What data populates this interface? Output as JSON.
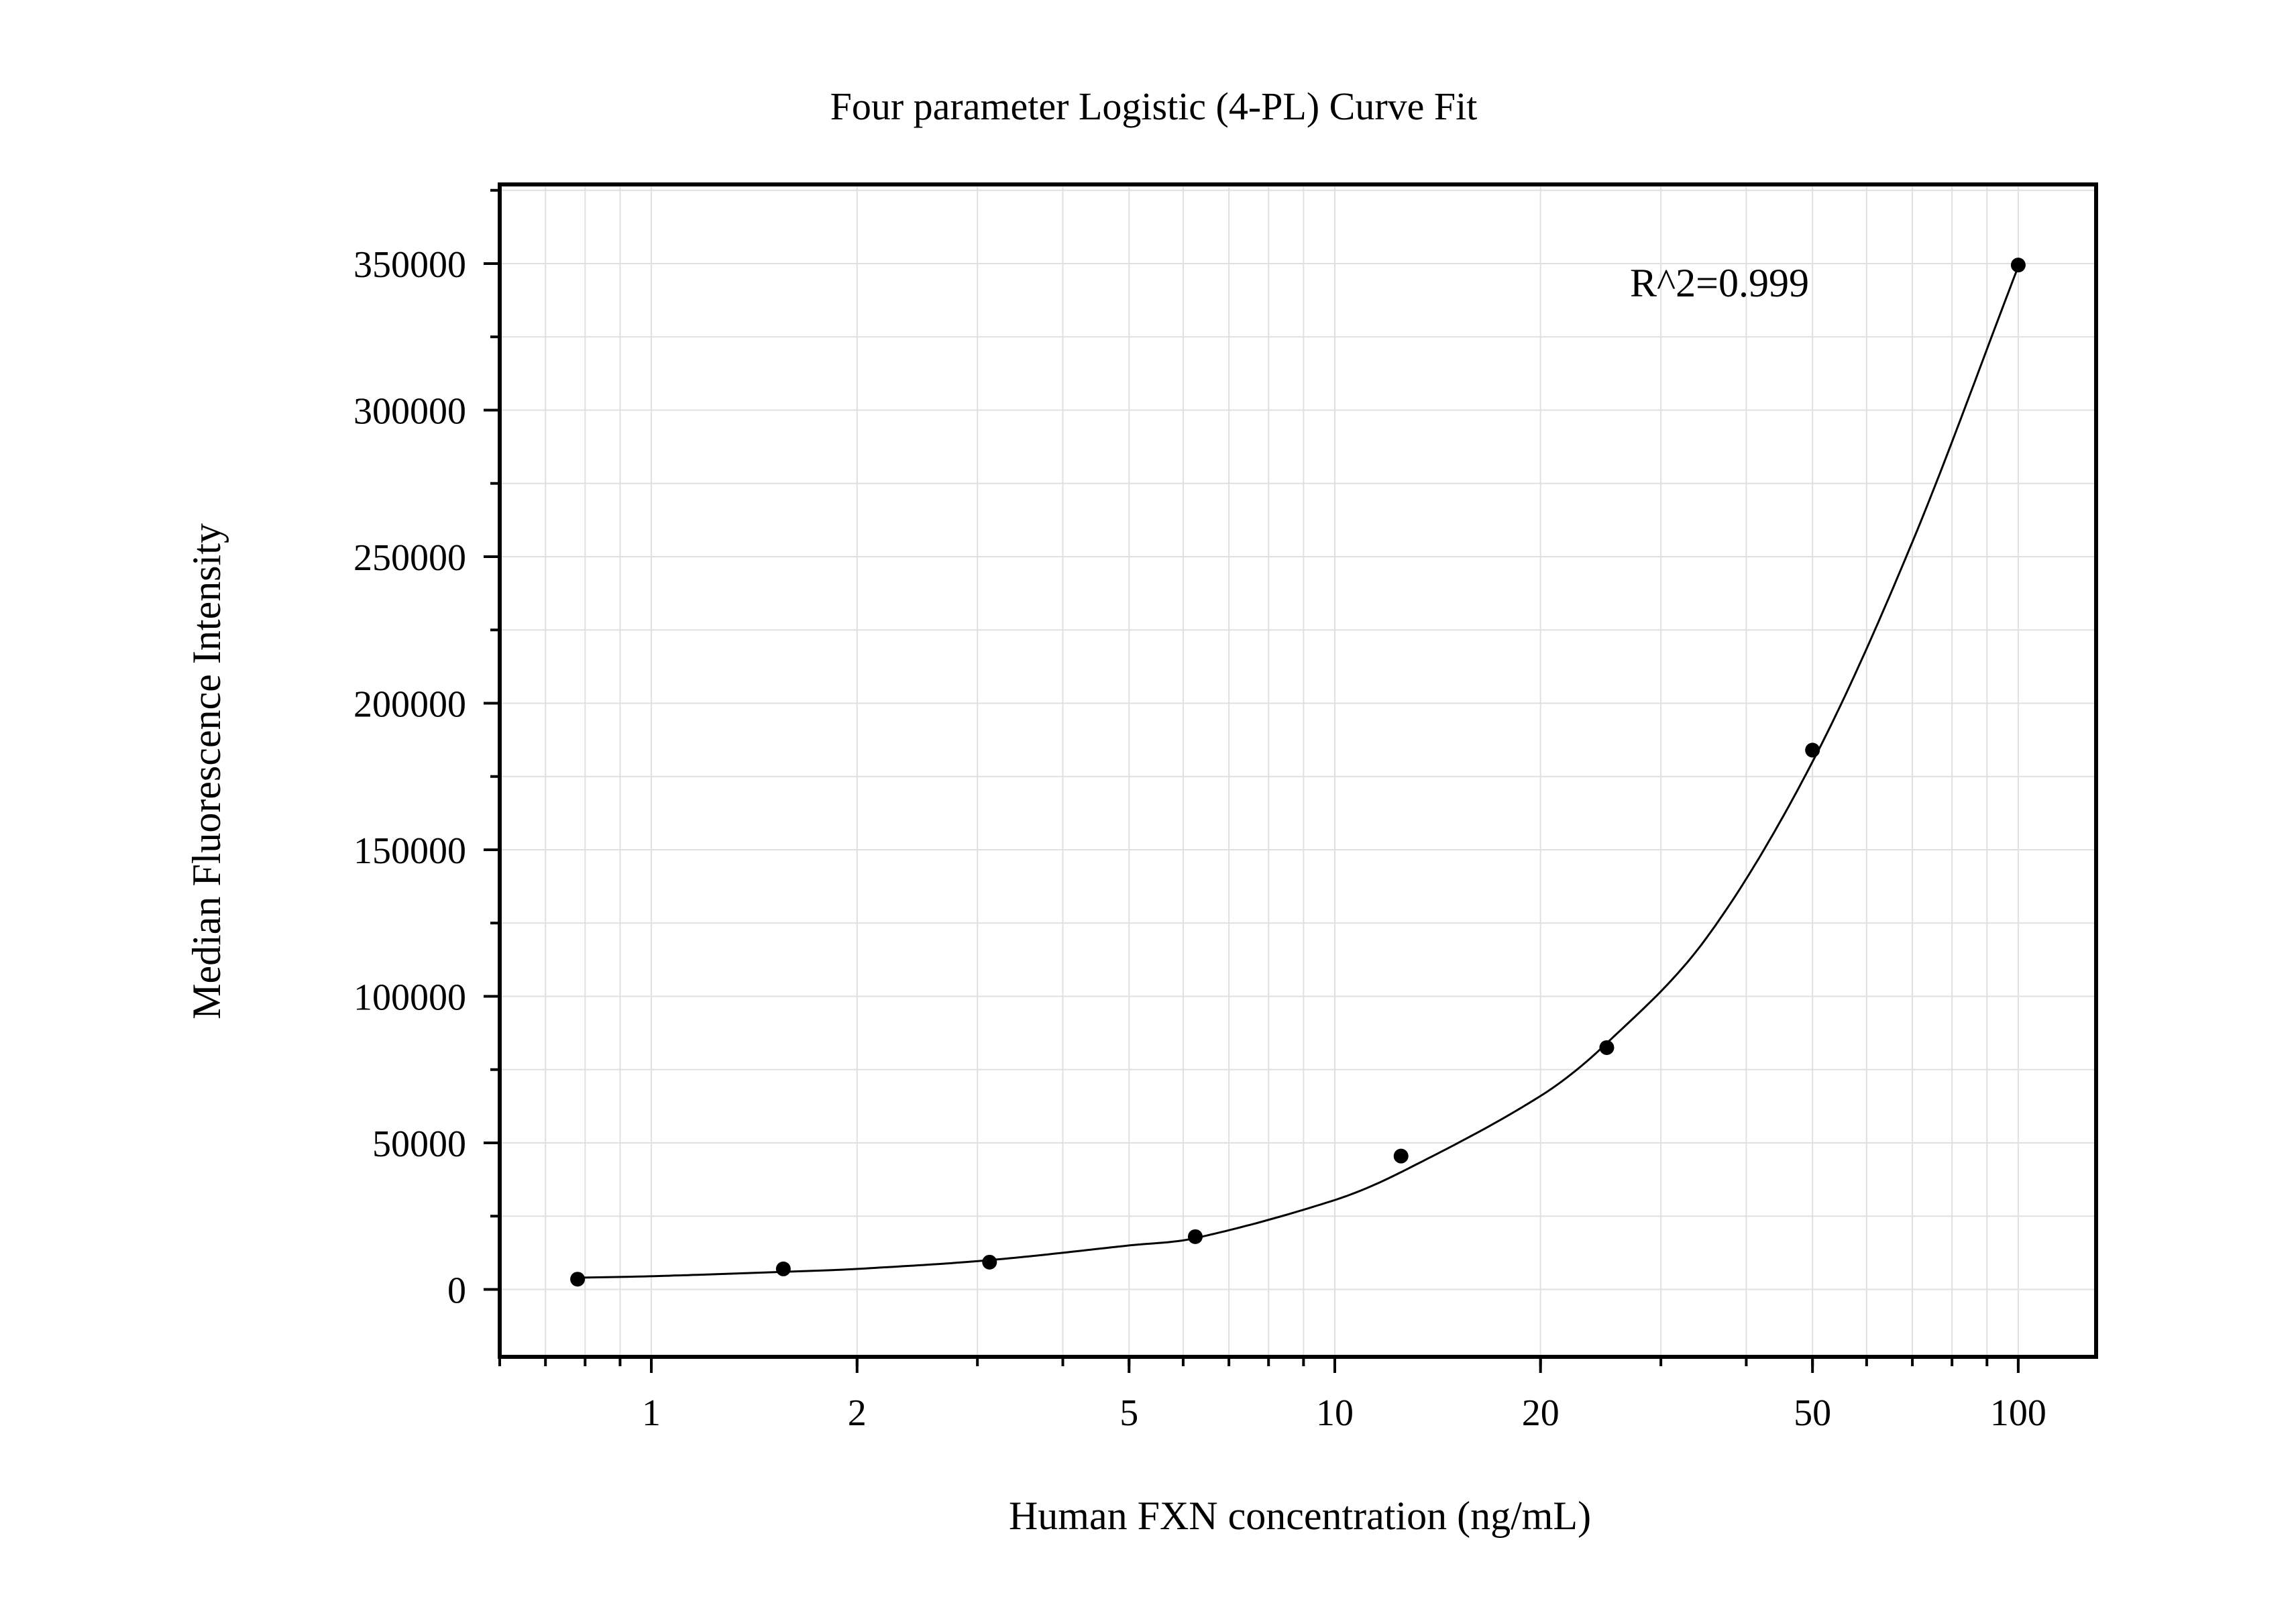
{
  "chart_data": {
    "type": "scatter",
    "title": "Four parameter Logistic (4-PL) Curve Fit",
    "xlabel": "Human FXN concentration (ng/mL)",
    "ylabel": "Median Fluorescence Intensity",
    "x_scale": "log",
    "xlim": [
      0.6,
      130
    ],
    "ylim": [
      -23000,
      377000
    ],
    "x_ticks": [
      1,
      2,
      5,
      10,
      20,
      50,
      100
    ],
    "x_tick_labels": [
      "1",
      "2",
      "5",
      "10",
      "20",
      "50",
      "100"
    ],
    "y_ticks": [
      0,
      50000,
      100000,
      150000,
      200000,
      250000,
      300000,
      350000
    ],
    "y_tick_labels": [
      "0",
      "50000",
      "100000",
      "150000",
      "200000",
      "250000",
      "300000",
      "350000"
    ],
    "grid": true,
    "annotation": "R^2=0.999",
    "series": [
      {
        "kind": "points",
        "x": [
          0.78,
          1.56,
          3.125,
          6.25,
          12.5,
          25,
          50,
          100
        ],
        "y": [
          3500,
          7000,
          9300,
          18000,
          45500,
          82500,
          184000,
          349500
        ]
      },
      {
        "kind": "fit",
        "curve_x": [
          0.78,
          1,
          1.56,
          2,
          3.125,
          5,
          6.25,
          10,
          12.5,
          20,
          25,
          35,
          50,
          70,
          100
        ],
        "curve_y": [
          4000,
          4500,
          6000,
          7000,
          10000,
          15000,
          17500,
          30500,
          40000,
          66000,
          84000,
          120000,
          180000,
          255000,
          349000
        ]
      }
    ],
    "colors": {
      "points": "#000000",
      "curve": "#000000",
      "grid": "#e0e0e0",
      "frame": "#000000"
    }
  }
}
